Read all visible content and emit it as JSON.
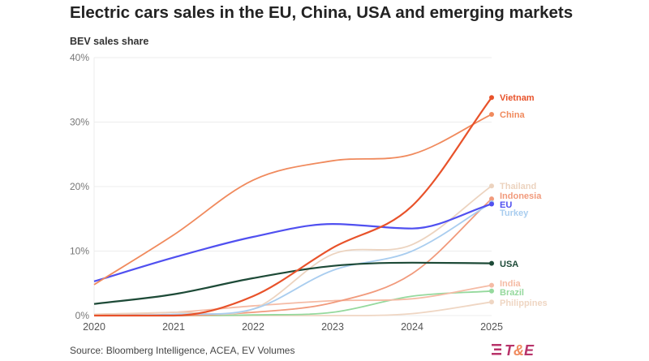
{
  "chart_data": {
    "type": "line",
    "title": "Electric cars sales in the EU, China, USA and emerging markets",
    "ylabel": "BEV sales share",
    "xlabel": "",
    "x": [
      2020,
      2021,
      2022,
      2023,
      2024,
      2025
    ],
    "x_tick_labels": [
      "2020",
      "2021",
      "2022",
      "2023",
      "2024",
      "2025"
    ],
    "ylim": [
      0,
      40
    ],
    "y_ticks": [
      0,
      10,
      20,
      30,
      40
    ],
    "y_tick_labels": [
      "0%",
      "10%",
      "20%",
      "30%",
      "40%"
    ],
    "grid": "horizontal",
    "legend": "direct labels at right end",
    "series": [
      {
        "name": "Philippines",
        "color": "#efd6c3",
        "values": [
          0,
          0,
          0,
          0,
          0.3,
          2.1
        ]
      },
      {
        "name": "Brazil",
        "color": "#95d99d",
        "values": [
          0,
          0,
          0.1,
          0.5,
          3.0,
          3.8
        ]
      },
      {
        "name": "India",
        "color": "#f5bba5",
        "values": [
          0.2,
          0.5,
          1.5,
          2.3,
          2.6,
          4.7
        ]
      },
      {
        "name": "Indonesia",
        "color": "#f19a7c",
        "values": [
          0,
          0,
          0.5,
          2.0,
          6.5,
          18.1
        ]
      },
      {
        "name": "Thailand",
        "color": "#ecd3bf",
        "values": [
          0.2,
          0.5,
          1.0,
          9.5,
          11.0,
          20.1
        ]
      },
      {
        "name": "Turkey",
        "color": "#a9cdef",
        "values": [
          0,
          0.2,
          1.0,
          7.0,
          10.0,
          17.5
        ]
      },
      {
        "name": "USA",
        "color": "#1d4a37",
        "values": [
          1.8,
          3.3,
          5.8,
          7.7,
          8.2,
          8.1
        ]
      },
      {
        "name": "EU",
        "color": "#5050f0",
        "values": [
          5.3,
          9.0,
          12.2,
          14.2,
          13.5,
          17.3
        ]
      },
      {
        "name": "China",
        "color": "#f08a5d",
        "values": [
          4.8,
          12.5,
          21.0,
          24.0,
          25.0,
          31.2
        ]
      },
      {
        "name": "Vietnam",
        "color": "#e8522a",
        "values": [
          0,
          0,
          3.0,
          10.5,
          17.0,
          33.8
        ]
      }
    ]
  },
  "source": "Source: Bloomberg Intelligence, ACEA, EV Volumes",
  "logo": {
    "text": "T&E",
    "colors": [
      "#b8336a",
      "#f08a5d"
    ]
  }
}
